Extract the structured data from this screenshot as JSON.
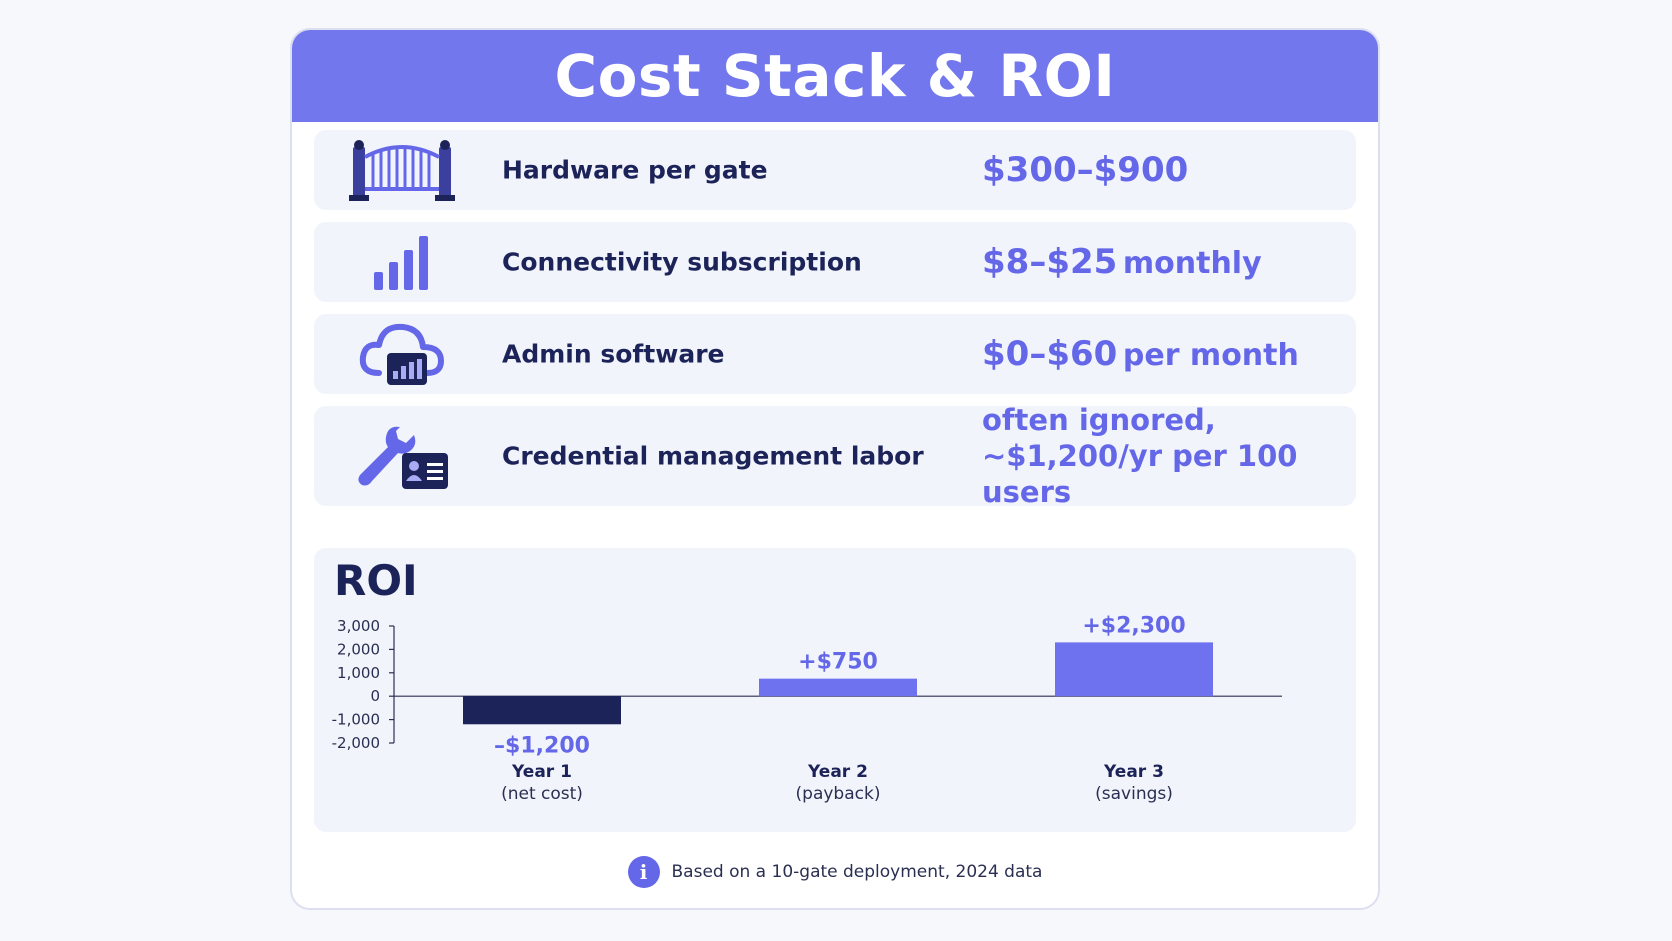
{
  "header": {
    "title": "Cost Stack & ROI"
  },
  "costs": [
    {
      "icon": "gate-icon",
      "label": "Hardware per gate",
      "value": "$300–$900",
      "suffix": ""
    },
    {
      "icon": "signal-bars-icon",
      "label": "Connectivity subscription",
      "value": "$8–$25",
      "suffix": "monthly"
    },
    {
      "icon": "cloud-dashboard-icon",
      "label": "Admin software",
      "value": "$0–$60",
      "suffix": "per month"
    },
    {
      "icon": "wrench-id-card-icon",
      "label": "Credential management labor",
      "value": "often ignored, ~$1,200/yr per 100 users",
      "suffix": ""
    }
  ],
  "roi": {
    "title": "ROI"
  },
  "chart_data": {
    "type": "bar",
    "title": "ROI",
    "categories": [
      "Year 1",
      "Year 2",
      "Year 3"
    ],
    "category_sublabels": [
      "(net cost)",
      "(payback)",
      "(savings)"
    ],
    "values": [
      -1200,
      750,
      2300
    ],
    "data_labels": [
      "–$1,200",
      "+$750",
      "+$2,300"
    ],
    "y_ticks": [
      3000,
      2000,
      1000,
      0,
      -1000,
      -2000
    ],
    "y_tick_labels": [
      "3,000",
      "2,000",
      "1,000",
      "0",
      "-1,000",
      "-2,000"
    ],
    "ylim": [
      -2000,
      3000
    ],
    "grid": false,
    "colors": {
      "negative": "#1c2358",
      "positive": "#6e72ee",
      "label_positive": "#6367e8",
      "label_negative": "#6367e8"
    }
  },
  "footnote": {
    "text": "Based on a 10-gate deployment, 2024 data",
    "icon": "info-icon"
  },
  "colors": {
    "accent": "#7277ee",
    "navy": "#1c2358",
    "row_bg": "#f2f4fb"
  }
}
